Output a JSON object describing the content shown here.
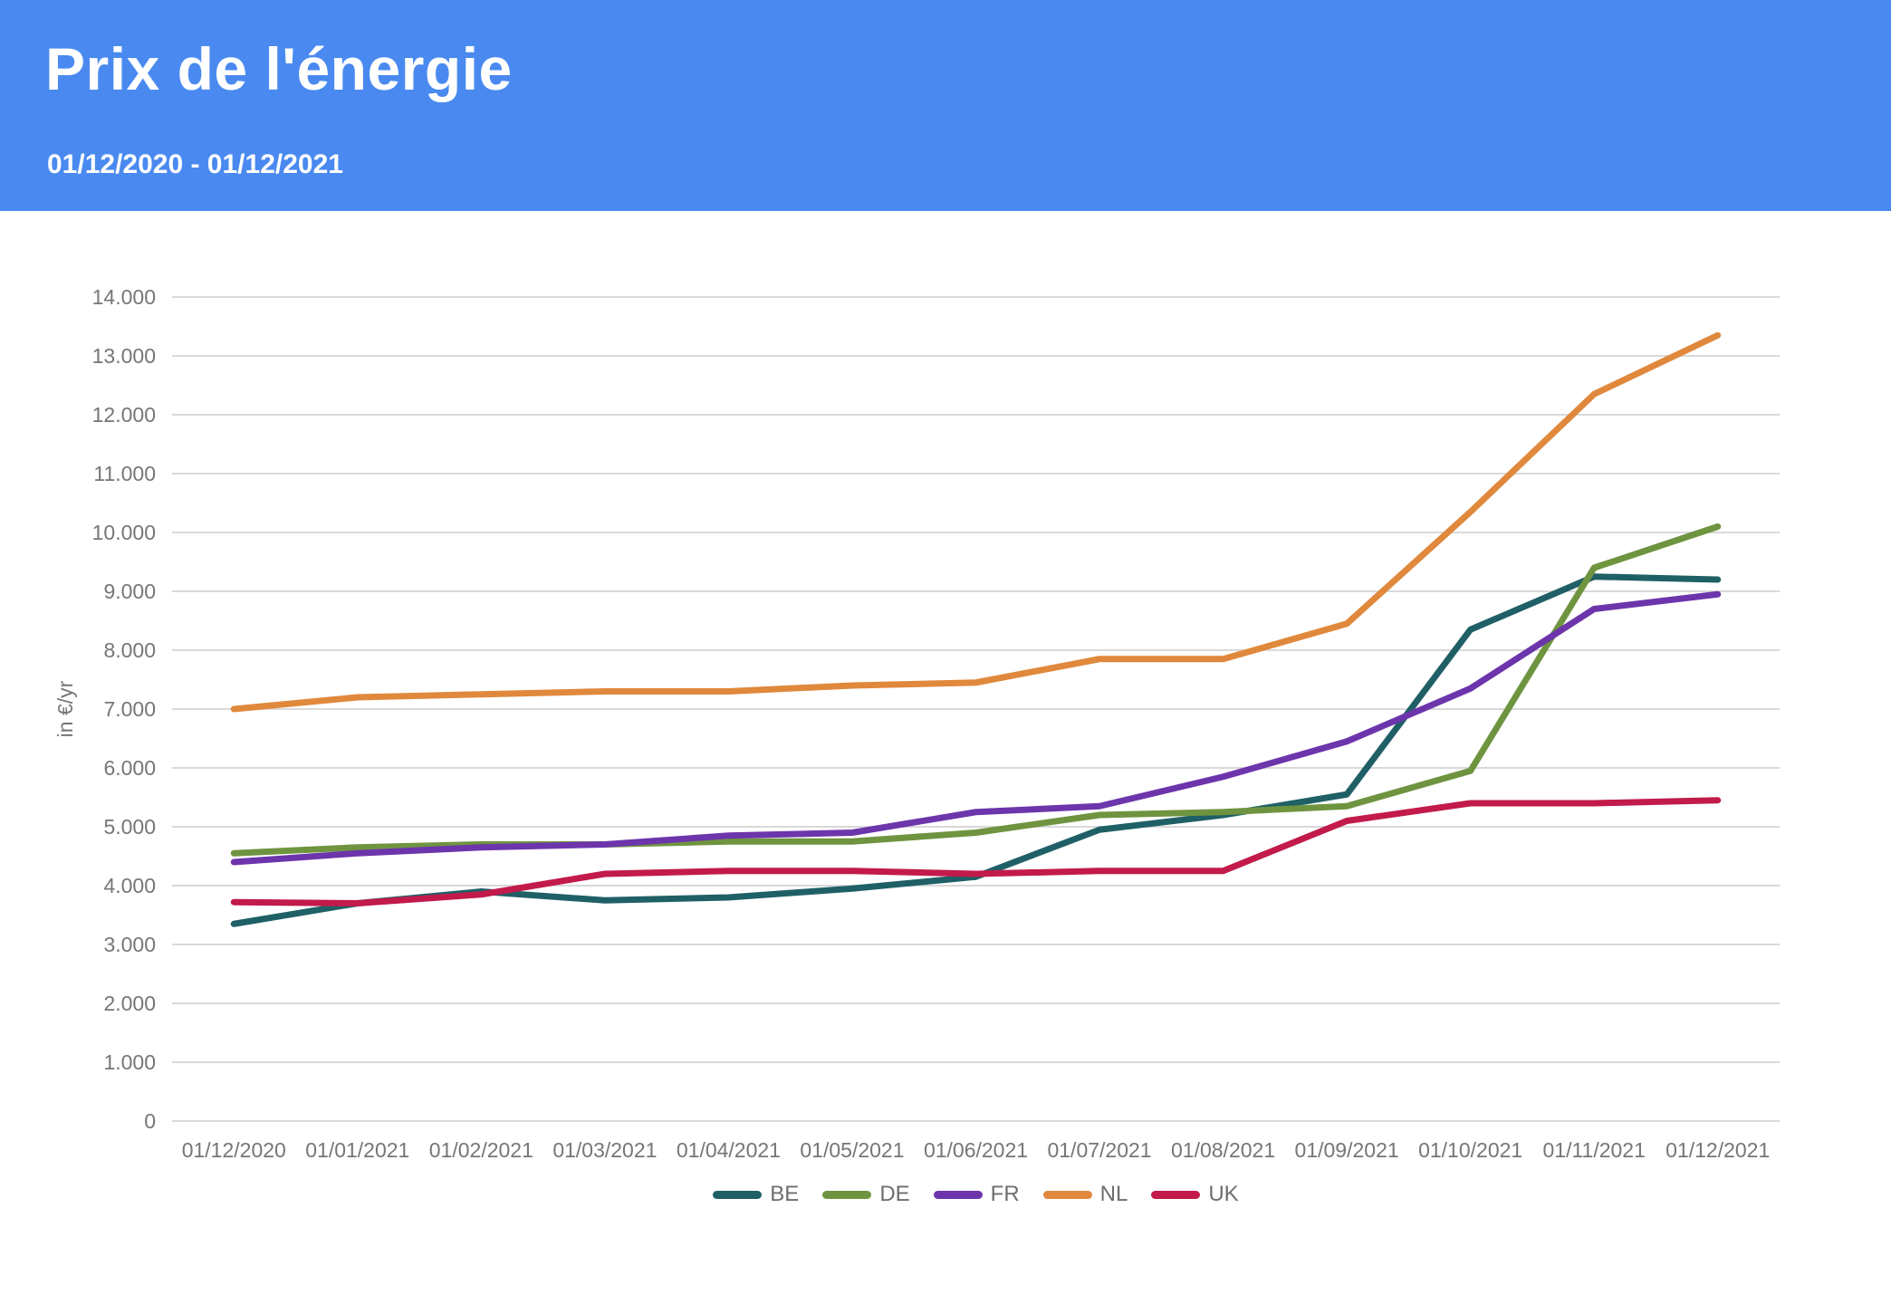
{
  "header": {
    "title": "Prix de l'énergie",
    "subtitle": "01/12/2020 - 01/12/2021",
    "background_color": "#4a8af0",
    "text_color": "#ffffff"
  },
  "chart_data": {
    "type": "line",
    "title": "Prix de l'énergie",
    "xlabel": "",
    "ylabel": "in €/yr",
    "ylim": [
      0,
      14000
    ],
    "ytick_step": 1000,
    "grid": true,
    "legend_position": "bottom",
    "gridline_color": "#d9d9d9",
    "axis_text_color": "#767676",
    "categories": [
      "01/12/2020",
      "01/01/2021",
      "01/02/2021",
      "01/03/2021",
      "01/04/2021",
      "01/05/2021",
      "01/06/2021",
      "01/07/2021",
      "01/08/2021",
      "01/09/2021",
      "01/10/2021",
      "01/11/2021",
      "01/12/2021"
    ],
    "series": [
      {
        "name": "BE",
        "color": "#1f6066",
        "values": [
          3350,
          3700,
          3900,
          3750,
          3800,
          3950,
          4150,
          4950,
          5200,
          5550,
          8350,
          9250,
          9200
        ]
      },
      {
        "name": "DE",
        "color": "#6f9440",
        "values": [
          4550,
          4650,
          4700,
          4700,
          4750,
          4750,
          4900,
          5200,
          5250,
          5350,
          5950,
          9400,
          10100
        ]
      },
      {
        "name": "FR",
        "color": "#6d35ab",
        "values": [
          4400,
          4550,
          4650,
          4700,
          4850,
          4900,
          5250,
          5350,
          5850,
          6450,
          7350,
          8700,
          8950
        ]
      },
      {
        "name": "NL",
        "color": "#e0883c",
        "values": [
          7000,
          7200,
          7250,
          7300,
          7300,
          7400,
          7450,
          7850,
          7850,
          8450,
          10350,
          12350,
          13350
        ]
      },
      {
        "name": "UK",
        "color": "#c21a4b",
        "values": [
          3720,
          3700,
          3850,
          4200,
          4250,
          4250,
          4200,
          4250,
          4250,
          5100,
          5400,
          5400,
          5450
        ]
      }
    ]
  }
}
